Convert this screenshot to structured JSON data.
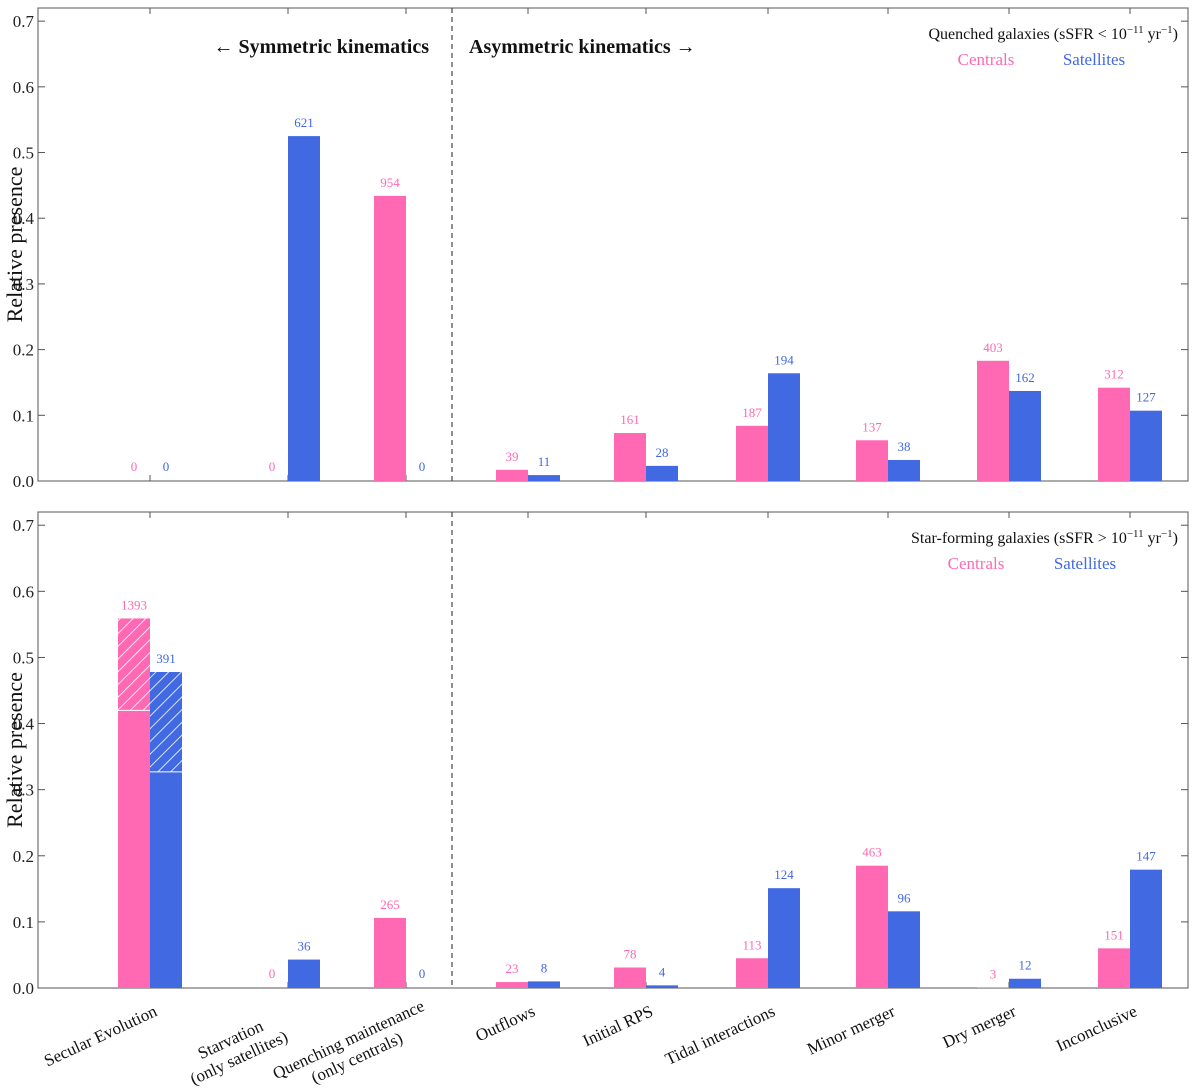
{
  "colors": {
    "centrals": "#ff69b4",
    "satellites": "#4169e1",
    "axis": "#555555"
  },
  "chart_data": [
    {
      "type": "bar",
      "panel": "top",
      "title": "Quenched galaxies (sSFR < 10⁻¹¹ yr⁻¹)",
      "ylabel": "Relative presence",
      "ylim": [
        0,
        0.72
      ],
      "yticks": [
        "0.0",
        "0.1",
        "0.2",
        "0.3",
        "0.4",
        "0.5",
        "0.6",
        "0.7"
      ],
      "grid": false,
      "legend_position": "top-right",
      "left_header": "← Symmetric kinematics",
      "right_header": "Asymmetric kinematics →",
      "categories": [
        "Secular Evolution",
        "Starvation\n(only satellites)",
        "Quenching maintenance\n(only centrals)",
        "Outflows",
        "Initial RPS",
        "Tidal interactions",
        "Minor merger",
        "Dry merger",
        "Inconclusive"
      ],
      "series": [
        {
          "name": "Centrals",
          "values": [
            0,
            0,
            0.434,
            0.017,
            0.073,
            0.084,
            0.062,
            0.183,
            0.142
          ],
          "labels": [
            "0",
            "0",
            "954",
            "39",
            "161",
            "187",
            "137",
            "403",
            "312"
          ]
        },
        {
          "name": "Satellites",
          "values": [
            0,
            0.525,
            0,
            0.009,
            0.023,
            0.164,
            0.032,
            0.137,
            0.107
          ],
          "labels": [
            "0",
            "621",
            "0",
            "11",
            "28",
            "194",
            "38",
            "162",
            "127"
          ]
        }
      ]
    },
    {
      "type": "bar",
      "panel": "bottom",
      "title": "Star-forming galaxies (sSFR > 10⁻¹¹ yr⁻¹)",
      "ylabel": "Relative presence",
      "ylim": [
        0,
        0.72
      ],
      "yticks": [
        "0.0",
        "0.1",
        "0.2",
        "0.3",
        "0.4",
        "0.5",
        "0.6",
        "0.7"
      ],
      "grid": false,
      "legend_position": "top-right",
      "categories": [
        "Secular Evolution",
        "Starvation\n(only satellites)",
        "Quenching maintenance\n(only centrals)",
        "Outflows",
        "Initial RPS",
        "Tidal interactions",
        "Minor merger",
        "Dry merger",
        "Inconclusive"
      ],
      "series": [
        {
          "name": "Centrals",
          "values": [
            0.559,
            0,
            0.106,
            0.009,
            0.031,
            0.045,
            0.185,
            0.001,
            0.06
          ],
          "hatched_portion": [
            0.139,
            0,
            0,
            0,
            0,
            0,
            0,
            0,
            0
          ],
          "labels": [
            "1393",
            "0",
            "265",
            "23",
            "78",
            "113",
            "463",
            "3",
            "151"
          ]
        },
        {
          "name": "Satellites",
          "values": [
            0.478,
            0.043,
            0,
            0.01,
            0.004,
            0.151,
            0.116,
            0.014,
            0.179
          ],
          "hatched_portion": [
            0.151,
            0,
            0,
            0,
            0,
            0,
            0,
            0,
            0
          ],
          "labels": [
            "391",
            "36",
            "0",
            "8",
            "4",
            "124",
            "96",
            "12",
            "147"
          ]
        }
      ]
    }
  ]
}
